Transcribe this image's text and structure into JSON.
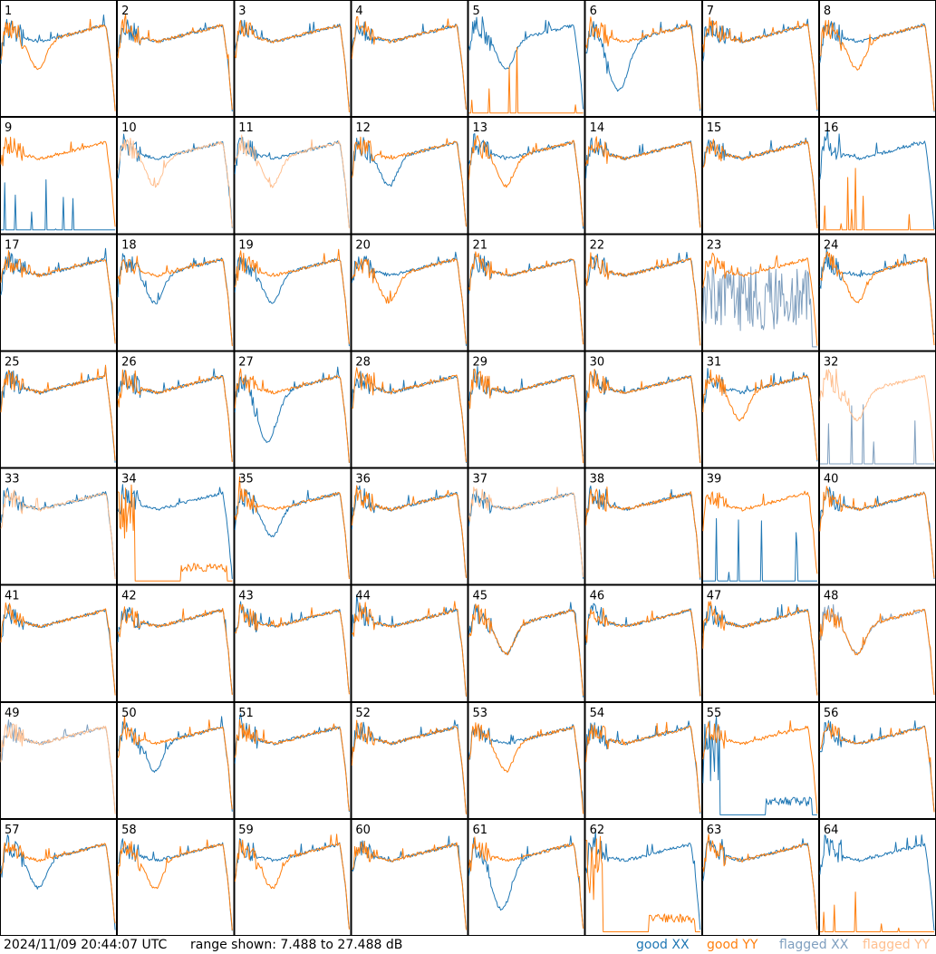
{
  "footer": {
    "timestamp": "2024/11/09 20:44:07 UTC",
    "range": "range shown: 7.488 to 27.488 dB"
  },
  "legend": {
    "good_xx": "good XX",
    "good_yy": "good YY",
    "flagged_xx": "flagged XX",
    "flagged_yy": "flagged YY"
  },
  "colors": {
    "good_xx": "#1f77b4",
    "good_yy": "#ff7f0e",
    "flagged_xx": "#7f9fbf",
    "flagged_yy": "#ffbf8f"
  },
  "chart_data": {
    "type": "line",
    "layout": "8x8 grid of small multiples",
    "y_range_db": [
      7.488,
      27.488
    ],
    "x_ticks": "none",
    "panels": [
      {
        "n": "1",
        "xx": "good",
        "yy": "good",
        "xx_shape": "normal",
        "yy_shape": "dip"
      },
      {
        "n": "2",
        "xx": "good",
        "yy": "good",
        "xx_shape": "normal",
        "yy_shape": "normal"
      },
      {
        "n": "3",
        "xx": "good",
        "yy": "good",
        "xx_shape": "normal",
        "yy_shape": "normal"
      },
      {
        "n": "4",
        "xx": "good",
        "yy": "good",
        "xx_shape": "normal",
        "yy_shape": "normal"
      },
      {
        "n": "5",
        "xx": "good",
        "yy": "good",
        "xx_shape": "dip",
        "yy_shape": "spikes"
      },
      {
        "n": "6",
        "xx": "good",
        "yy": "good",
        "xx_shape": "deep",
        "yy_shape": "normal"
      },
      {
        "n": "7",
        "xx": "good",
        "yy": "good",
        "xx_shape": "normal",
        "yy_shape": "normal"
      },
      {
        "n": "8",
        "xx": "good",
        "yy": "good",
        "xx_shape": "normal",
        "yy_shape": "dip"
      },
      {
        "n": "9",
        "xx": "good",
        "yy": "good",
        "xx_shape": "spikes",
        "yy_shape": "normal"
      },
      {
        "n": "10",
        "xx": "good",
        "yy": "flagged",
        "xx_shape": "normal",
        "yy_shape": "dip"
      },
      {
        "n": "11",
        "xx": "good",
        "yy": "flagged",
        "xx_shape": "normal",
        "yy_shape": "dip"
      },
      {
        "n": "12",
        "xx": "good",
        "yy": "good",
        "xx_shape": "dip",
        "yy_shape": "normal"
      },
      {
        "n": "13",
        "xx": "good",
        "yy": "good",
        "xx_shape": "normal",
        "yy_shape": "dip"
      },
      {
        "n": "14",
        "xx": "good",
        "yy": "good",
        "xx_shape": "normal",
        "yy_shape": "normal"
      },
      {
        "n": "15",
        "xx": "good",
        "yy": "good",
        "xx_shape": "normal",
        "yy_shape": "normal"
      },
      {
        "n": "16",
        "xx": "good",
        "yy": "good",
        "xx_shape": "normal",
        "yy_shape": "spikes"
      },
      {
        "n": "17",
        "xx": "good",
        "yy": "good",
        "xx_shape": "normal",
        "yy_shape": "normal"
      },
      {
        "n": "18",
        "xx": "good",
        "yy": "good",
        "xx_shape": "dip",
        "yy_shape": "normal"
      },
      {
        "n": "19",
        "xx": "good",
        "yy": "good",
        "xx_shape": "dip",
        "yy_shape": "normal"
      },
      {
        "n": "20",
        "xx": "good",
        "yy": "good",
        "xx_shape": "normal",
        "yy_shape": "dip"
      },
      {
        "n": "21",
        "xx": "good",
        "yy": "good",
        "xx_shape": "normal",
        "yy_shape": "normal"
      },
      {
        "n": "22",
        "xx": "good",
        "yy": "good",
        "xx_shape": "normal",
        "yy_shape": "normal"
      },
      {
        "n": "23",
        "xx": "flagged",
        "yy": "good",
        "xx_shape": "noisy",
        "yy_shape": "normal"
      },
      {
        "n": "24",
        "xx": "good",
        "yy": "good",
        "xx_shape": "normal",
        "yy_shape": "dip"
      },
      {
        "n": "25",
        "xx": "good",
        "yy": "good",
        "xx_shape": "normal",
        "yy_shape": "normal"
      },
      {
        "n": "26",
        "xx": "good",
        "yy": "good",
        "xx_shape": "normal",
        "yy_shape": "normal"
      },
      {
        "n": "27",
        "xx": "good",
        "yy": "good",
        "xx_shape": "deep",
        "yy_shape": "normal"
      },
      {
        "n": "28",
        "xx": "good",
        "yy": "good",
        "xx_shape": "normal",
        "yy_shape": "normal"
      },
      {
        "n": "29",
        "xx": "good",
        "yy": "good",
        "xx_shape": "normal",
        "yy_shape": "normal"
      },
      {
        "n": "30",
        "xx": "good",
        "yy": "good",
        "xx_shape": "normal",
        "yy_shape": "normal"
      },
      {
        "n": "31",
        "xx": "good",
        "yy": "good",
        "xx_shape": "normal",
        "yy_shape": "dip"
      },
      {
        "n": "32",
        "xx": "flagged",
        "yy": "flagged",
        "xx_shape": "spikes",
        "yy_shape": "dip"
      },
      {
        "n": "33",
        "xx": "good",
        "yy": "flagged",
        "xx_shape": "normal",
        "yy_shape": "normal"
      },
      {
        "n": "34",
        "xx": "good",
        "yy": "good",
        "xx_shape": "normal",
        "yy_shape": "floor"
      },
      {
        "n": "35",
        "xx": "good",
        "yy": "good",
        "xx_shape": "dip",
        "yy_shape": "normal"
      },
      {
        "n": "36",
        "xx": "good",
        "yy": "good",
        "xx_shape": "normal",
        "yy_shape": "normal"
      },
      {
        "n": "37",
        "xx": "good",
        "yy": "flagged",
        "xx_shape": "normal",
        "yy_shape": "normal"
      },
      {
        "n": "38",
        "xx": "good",
        "yy": "good",
        "xx_shape": "normal",
        "yy_shape": "normal"
      },
      {
        "n": "39",
        "xx": "good",
        "yy": "good",
        "xx_shape": "spikes",
        "yy_shape": "normal"
      },
      {
        "n": "40",
        "xx": "good",
        "yy": "good",
        "xx_shape": "normal",
        "yy_shape": "normal"
      },
      {
        "n": "41",
        "xx": "good",
        "yy": "good",
        "xx_shape": "normal",
        "yy_shape": "normal"
      },
      {
        "n": "42",
        "xx": "good",
        "yy": "good",
        "xx_shape": "normal",
        "yy_shape": "normal"
      },
      {
        "n": "43",
        "xx": "good",
        "yy": "good",
        "xx_shape": "normal",
        "yy_shape": "normal"
      },
      {
        "n": "44",
        "xx": "good",
        "yy": "good",
        "xx_shape": "normal",
        "yy_shape": "normal"
      },
      {
        "n": "45",
        "xx": "good",
        "yy": "good",
        "xx_shape": "dip",
        "yy_shape": "dip"
      },
      {
        "n": "46",
        "xx": "good",
        "yy": "good",
        "xx_shape": "normal",
        "yy_shape": "normal"
      },
      {
        "n": "47",
        "xx": "good",
        "yy": "good",
        "xx_shape": "normal",
        "yy_shape": "normal"
      },
      {
        "n": "48",
        "xx": "flagged",
        "yy": "good",
        "xx_shape": "dip",
        "yy_shape": "dip"
      },
      {
        "n": "49",
        "xx": "flagged",
        "yy": "flagged",
        "xx_shape": "normal",
        "yy_shape": "normal"
      },
      {
        "n": "50",
        "xx": "good",
        "yy": "good",
        "xx_shape": "dip",
        "yy_shape": "normal"
      },
      {
        "n": "51",
        "xx": "good",
        "yy": "good",
        "xx_shape": "normal",
        "yy_shape": "normal"
      },
      {
        "n": "52",
        "xx": "good",
        "yy": "good",
        "xx_shape": "normal",
        "yy_shape": "normal"
      },
      {
        "n": "53",
        "xx": "good",
        "yy": "good",
        "xx_shape": "normal",
        "yy_shape": "dip"
      },
      {
        "n": "54",
        "xx": "good",
        "yy": "good",
        "xx_shape": "normal",
        "yy_shape": "normal"
      },
      {
        "n": "55",
        "xx": "good",
        "yy": "good",
        "xx_shape": "floor",
        "yy_shape": "normal"
      },
      {
        "n": "56",
        "xx": "good",
        "yy": "good",
        "xx_shape": "normal",
        "yy_shape": "normal"
      },
      {
        "n": "57",
        "xx": "good",
        "yy": "good",
        "xx_shape": "dip",
        "yy_shape": "normal"
      },
      {
        "n": "58",
        "xx": "good",
        "yy": "good",
        "xx_shape": "normal",
        "yy_shape": "dip"
      },
      {
        "n": "59",
        "xx": "good",
        "yy": "good",
        "xx_shape": "normal",
        "yy_shape": "dip"
      },
      {
        "n": "60",
        "xx": "good",
        "yy": "good",
        "xx_shape": "normal",
        "yy_shape": "normal"
      },
      {
        "n": "61",
        "xx": "good",
        "yy": "good",
        "xx_shape": "deep",
        "yy_shape": "normal"
      },
      {
        "n": "62",
        "xx": "good",
        "yy": "good",
        "xx_shape": "normal",
        "yy_shape": "floor"
      },
      {
        "n": "63",
        "xx": "good",
        "yy": "good",
        "xx_shape": "normal",
        "yy_shape": "normal"
      },
      {
        "n": "64",
        "xx": "good",
        "yy": "good",
        "xx_shape": "normal",
        "yy_shape": "spikes"
      }
    ]
  }
}
